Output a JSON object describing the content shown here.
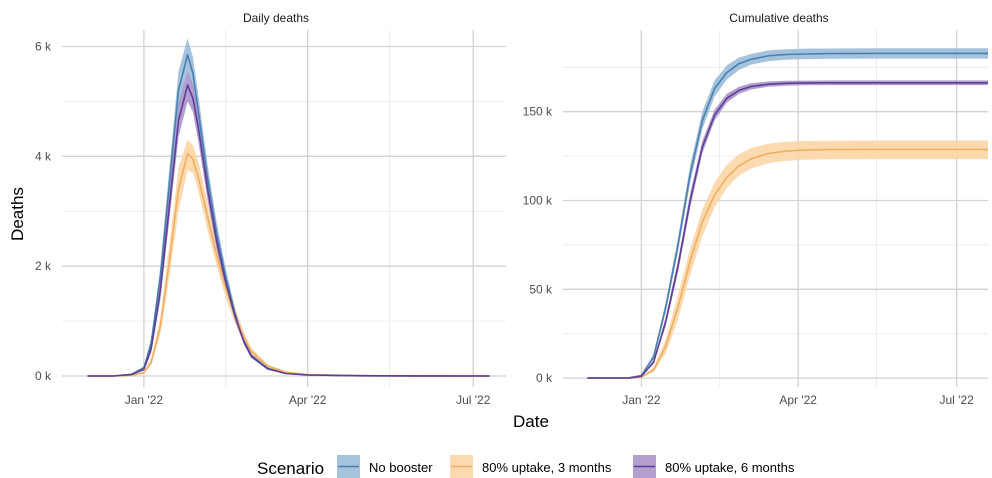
{
  "chart_data": {
    "type": "line",
    "xlabel": "Date",
    "legend": {
      "title": "Scenario",
      "position": "bottom"
    },
    "series_styles": [
      {
        "name": "No booster",
        "color": "#4A7FB0",
        "ribbon": "#97B9D7"
      },
      {
        "name": "80% uptake, 3 months",
        "color": "#F2AE5E",
        "ribbon": "#FCD3A2"
      },
      {
        "name": "80% uptake, 6 months",
        "color": "#5D3E97",
        "ribbon": "#A48DC7"
      }
    ],
    "x_range": [
      "2021-11-17",
      "2022-07-19"
    ],
    "x_ticks": [
      {
        "date": "2022-01-01",
        "label": "Jan '22"
      },
      {
        "date": "2022-04-01",
        "label": "Apr '22"
      },
      {
        "date": "2022-07-01",
        "label": "Jul '22"
      }
    ],
    "panels": [
      {
        "title": "Daily deaths",
        "ylabel": "Deaths",
        "ylim": [
          -200,
          6300
        ],
        "y_ticks": [
          {
            "value": 0,
            "label": "0 k"
          },
          {
            "value": 2000,
            "label": "2 k"
          },
          {
            "value": 4000,
            "label": "4 k"
          },
          {
            "value": 6000,
            "label": "6 k"
          }
        ],
        "series": [
          {
            "name": "No booster",
            "x": [
              "2021-12-01",
              "2021-12-15",
              "2021-12-25",
              "2022-01-01",
              "2022-01-05",
              "2022-01-10",
              "2022-01-15",
              "2022-01-20",
              "2022-01-25",
              "2022-01-28",
              "2022-01-31",
              "2022-02-05",
              "2022-02-10",
              "2022-02-15",
              "2022-02-20",
              "2022-02-25",
              "2022-03-01",
              "2022-03-10",
              "2022-03-20",
              "2022-04-01",
              "2022-05-01",
              "2022-06-01",
              "2022-07-10"
            ],
            "y": [
              0,
              0,
              30,
              150,
              600,
              1800,
              3500,
              5200,
              5850,
              5500,
              4800,
              3600,
              2600,
              1800,
              1150,
              650,
              380,
              140,
              50,
              20,
              5,
              2,
              0
            ],
            "lower": [
              0,
              0,
              25,
              120,
              500,
              1600,
              3200,
              4850,
              5550,
              5200,
              4500,
              3350,
              2400,
              1650,
              1050,
              590,
              340,
              120,
              40,
              15,
              3,
              1,
              0
            ],
            "upper": [
              0,
              0,
              35,
              180,
              700,
              2000,
              3800,
              5550,
              6150,
              5800,
              5100,
              3850,
              2800,
              1950,
              1250,
              710,
              420,
              160,
              60,
              25,
              7,
              3,
              0
            ]
          },
          {
            "name": "80% uptake, 3 months",
            "x": [
              "2021-12-01",
              "2021-12-15",
              "2021-12-25",
              "2022-01-01",
              "2022-01-05",
              "2022-01-10",
              "2022-01-15",
              "2022-01-20",
              "2022-01-25",
              "2022-01-28",
              "2022-01-31",
              "2022-02-05",
              "2022-02-10",
              "2022-02-15",
              "2022-02-20",
              "2022-02-25",
              "2022-03-01",
              "2022-03-10",
              "2022-03-20",
              "2022-04-01",
              "2022-05-01",
              "2022-06-01",
              "2022-07-10"
            ],
            "y": [
              0,
              0,
              10,
              60,
              250,
              900,
              2100,
              3400,
              4050,
              3950,
              3600,
              2900,
              2200,
              1600,
              1100,
              700,
              450,
              180,
              70,
              25,
              5,
              2,
              0
            ],
            "lower": [
              0,
              0,
              8,
              45,
              200,
              750,
              1800,
              3000,
              3750,
              3700,
              3350,
              2650,
              2000,
              1420,
              960,
              600,
              380,
              150,
              55,
              18,
              3,
              1,
              0
            ],
            "upper": [
              0,
              0,
              12,
              80,
              320,
              1050,
              2400,
              3800,
              4300,
              4200,
              3900,
              3150,
              2450,
              1800,
              1250,
              800,
              520,
              210,
              85,
              32,
              7,
              3,
              0
            ]
          },
          {
            "name": "80% uptake, 6 months",
            "x": [
              "2021-12-01",
              "2021-12-15",
              "2021-12-25",
              "2022-01-01",
              "2022-01-05",
              "2022-01-10",
              "2022-01-15",
              "2022-01-20",
              "2022-01-25",
              "2022-01-28",
              "2022-01-31",
              "2022-02-05",
              "2022-02-10",
              "2022-02-15",
              "2022-02-20",
              "2022-02-25",
              "2022-03-01",
              "2022-03-10",
              "2022-03-20",
              "2022-04-01",
              "2022-05-01",
              "2022-06-01",
              "2022-07-10"
            ],
            "y": [
              0,
              0,
              25,
              120,
              500,
              1550,
              3100,
              4650,
              5300,
              5050,
              4500,
              3400,
              2450,
              1700,
              1100,
              620,
              360,
              130,
              45,
              18,
              4,
              2,
              0
            ],
            "lower": [
              0,
              0,
              20,
              100,
              420,
              1380,
              2850,
              4350,
              5000,
              4800,
              4250,
              3200,
              2300,
              1580,
              1020,
              570,
              330,
              115,
              38,
              14,
              3,
              1,
              0
            ],
            "upper": [
              0,
              0,
              30,
              145,
              590,
              1720,
              3350,
              4950,
              5550,
              5300,
              4750,
              3600,
              2600,
              1820,
              1180,
              670,
              390,
              145,
              52,
              22,
              5,
              3,
              0
            ]
          }
        ]
      },
      {
        "title": "Cumulative deaths",
        "ylim": [
          -5000,
          196000
        ],
        "y_ticks": [
          {
            "value": 0,
            "label": "0 k"
          },
          {
            "value": 50000,
            "label": "50 k"
          },
          {
            "value": 100000,
            "label": "100 k"
          },
          {
            "value": 150000,
            "label": "150 k"
          }
        ],
        "series": [
          {
            "name": "No booster",
            "x": [
              "2021-12-01",
              "2021-12-25",
              "2022-01-01",
              "2022-01-08",
              "2022-01-15",
              "2022-01-22",
              "2022-01-29",
              "2022-02-05",
              "2022-02-12",
              "2022-02-19",
              "2022-02-26",
              "2022-03-05",
              "2022-03-15",
              "2022-03-25",
              "2022-04-05",
              "2022-04-20",
              "2022-05-15",
              "2022-06-15",
              "2022-07-19"
            ],
            "y": [
              0,
              200,
              1500,
              12000,
              40000,
              75000,
              115000,
              145000,
              163000,
              172000,
              177000,
              179500,
              181500,
              182200,
              182500,
              182700,
              182800,
              182800,
              182800
            ],
            "lower": [
              0,
              180,
              1300,
              10500,
              37000,
              71000,
              110000,
              140000,
              158500,
              168000,
              173500,
              176500,
              178500,
              179300,
              179600,
              179800,
              179900,
              179900,
              179900
            ],
            "upper": [
              0,
              230,
              1700,
              13500,
              43000,
              79000,
              120000,
              150000,
              167500,
              176000,
              180500,
              182500,
              184500,
              185200,
              185500,
              185600,
              185700,
              185700,
              185700
            ]
          },
          {
            "name": "80% uptake, 3 months",
            "x": [
              "2021-12-01",
              "2021-12-25",
              "2022-01-01",
              "2022-01-08",
              "2022-01-15",
              "2022-01-22",
              "2022-01-29",
              "2022-02-05",
              "2022-02-12",
              "2022-02-19",
              "2022-02-26",
              "2022-03-05",
              "2022-03-15",
              "2022-03-25",
              "2022-04-05",
              "2022-04-20",
              "2022-05-15",
              "2022-06-15",
              "2022-07-19"
            ],
            "y": [
              0,
              80,
              600,
              4500,
              18000,
              40000,
              66000,
              88000,
              103000,
              113000,
              119500,
              123500,
              126500,
              127800,
              128400,
              128700,
              128800,
              128800,
              128800
            ],
            "lower": [
              0,
              60,
              450,
              3500,
              14000,
              33000,
              58000,
              80000,
              96000,
              107000,
              114000,
              118000,
              121000,
              122300,
              122900,
              123200,
              123300,
              123300,
              123300
            ],
            "upper": [
              0,
              100,
              800,
              6000,
              22000,
              47000,
              73000,
              95000,
              110000,
              120000,
              126000,
              129500,
              132000,
              133000,
              133500,
              133700,
              133800,
              133800,
              133800
            ]
          },
          {
            "name": "80% uptake, 6 months",
            "x": [
              "2021-12-01",
              "2021-12-25",
              "2022-01-01",
              "2022-01-08",
              "2022-01-15",
              "2022-01-22",
              "2022-01-29",
              "2022-02-05",
              "2022-02-12",
              "2022-02-19",
              "2022-02-26",
              "2022-03-05",
              "2022-03-15",
              "2022-03-25",
              "2022-04-05",
              "2022-04-20",
              "2022-05-15",
              "2022-06-15",
              "2022-07-19"
            ],
            "y": [
              0,
              150,
              1100,
              9000,
              32000,
              63000,
              100000,
              130000,
              148000,
              157500,
              162000,
              164200,
              165500,
              166000,
              166200,
              166300,
              166300,
              166300,
              166300
            ],
            "lower": [
              0,
              130,
              950,
              8000,
              29500,
              59500,
              96000,
              126500,
              145000,
              155000,
              160000,
              162500,
              164000,
              164600,
              164900,
              165000,
              165000,
              165000,
              165000
            ],
            "upper": [
              0,
              170,
              1250,
              10000,
              34500,
              66500,
              104000,
              133500,
              151000,
              160000,
              164000,
              166000,
              167000,
              167400,
              167500,
              167600,
              167600,
              167600,
              167600
            ]
          }
        ]
      }
    ]
  }
}
